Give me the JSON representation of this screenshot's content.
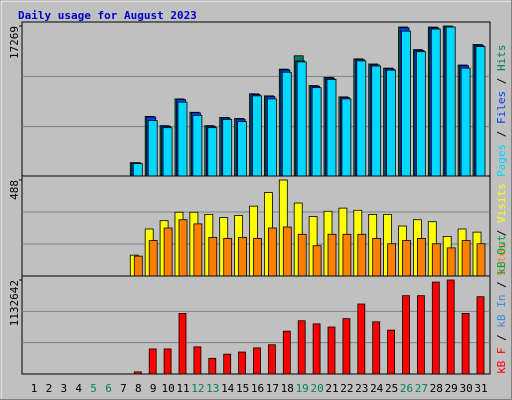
{
  "chart_data": [
    {
      "type": "bar",
      "title": "Daily usage for August 2023",
      "ylim": [
        0,
        17269
      ],
      "yticks": [
        17269
      ],
      "legend_separator": " / ",
      "series": [
        {
          "name": "Hits",
          "color": "#00805c",
          "values": [
            0,
            0,
            0,
            0,
            0,
            0,
            0,
            1645,
            6932,
            5875,
            8930,
            7402,
            5875,
            6815,
            6697,
            9517,
            9282,
            12337,
            13865,
            10457,
            11397,
            9165,
            13512,
            12925,
            12455,
            17155,
            14570,
            17150,
            17269,
            12807,
            15157
          ]
        },
        {
          "name": "Files",
          "color": "#0040ff",
          "values": [
            0,
            0,
            0,
            0,
            0,
            0,
            0,
            1620,
            6850,
            5800,
            8850,
            7330,
            5800,
            6740,
            6620,
            9430,
            9200,
            12240,
            13270,
            10380,
            11300,
            9080,
            13420,
            12830,
            12370,
            17060,
            14480,
            17050,
            17160,
            12720,
            15060
          ]
        },
        {
          "name": "Pages",
          "color": "#00d8ff",
          "values": [
            0,
            0,
            0,
            0,
            0,
            0,
            0,
            1530,
            6460,
            5640,
            8560,
            7050,
            5640,
            6580,
            6340,
            9280,
            8930,
            11980,
            13160,
            10220,
            11160,
            8930,
            13280,
            12690,
            12220,
            16680,
            14330,
            16920,
            17150,
            12450,
            14920
          ]
        }
      ]
    },
    {
      "type": "bar",
      "ylim": [
        0,
        488
      ],
      "yticks": [
        488
      ],
      "legend_separator": " / ",
      "series": [
        {
          "name": "Visits",
          "color": "#ffff00",
          "values": [
            0,
            0,
            0,
            0,
            0,
            0,
            0,
            106,
            239,
            281,
            324,
            324,
            313,
            297,
            307,
            355,
            424,
            488,
            371,
            302,
            329,
            345,
            334,
            313,
            313,
            254,
            286,
            276,
            201,
            239,
            223
          ]
        },
        {
          "name": "Sites",
          "color": "#ff8000",
          "values": [
            0,
            0,
            0,
            0,
            0,
            0,
            0,
            101,
            180,
            244,
            286,
            265,
            196,
            191,
            196,
            191,
            244,
            249,
            212,
            154,
            212,
            212,
            212,
            191,
            164,
            180,
            191,
            164,
            143,
            180,
            164
          ]
        }
      ]
    },
    {
      "type": "bar",
      "ylim": [
        0,
        1132642
      ],
      "yticks": [
        1132642
      ],
      "legend_separator": " / ",
      "categories": [
        "1",
        "2",
        "3",
        "4",
        "5",
        "6",
        "7",
        "8",
        "9",
        "10",
        "11",
        "12",
        "13",
        "14",
        "15",
        "16",
        "17",
        "18",
        "19",
        "20",
        "21",
        "22",
        "23",
        "24",
        "25",
        "26",
        "27",
        "28",
        "29",
        "30",
        "31"
      ],
      "category_colors": [
        "#000000",
        "#000000",
        "#000000",
        "#000000",
        "#008060",
        "#008060",
        "#000000",
        "#000000",
        "#000000",
        "#000000",
        "#000000",
        "#008060",
        "#008060",
        "#000000",
        "#000000",
        "#000000",
        "#000000",
        "#000000",
        "#008060",
        "#008060",
        "#000000",
        "#000000",
        "#000000",
        "#000000",
        "#000000",
        "#008060",
        "#008060",
        "#000000",
        "#000000",
        "#000000",
        "#000000"
      ],
      "series": [
        {
          "name": "kB F",
          "color": "#ff0000",
          "values": [
            0,
            0,
            0,
            0,
            0,
            0,
            0,
            25170,
            302040,
            302040,
            729930,
            327210,
            188775,
            239115,
            264285,
            314625,
            352380,
            515985,
            641835,
            604080,
            566325,
            667005,
            843195,
            629250,
            528570,
            943875,
            943875,
            1107480,
            1132642,
            729930,
            931290
          ]
        }
      ],
      "legend_extra": [
        {
          "name": "kB In",
          "color": "#3c8cd8"
        },
        {
          "name": "kB Out",
          "color": "#00a040"
        }
      ]
    }
  ]
}
